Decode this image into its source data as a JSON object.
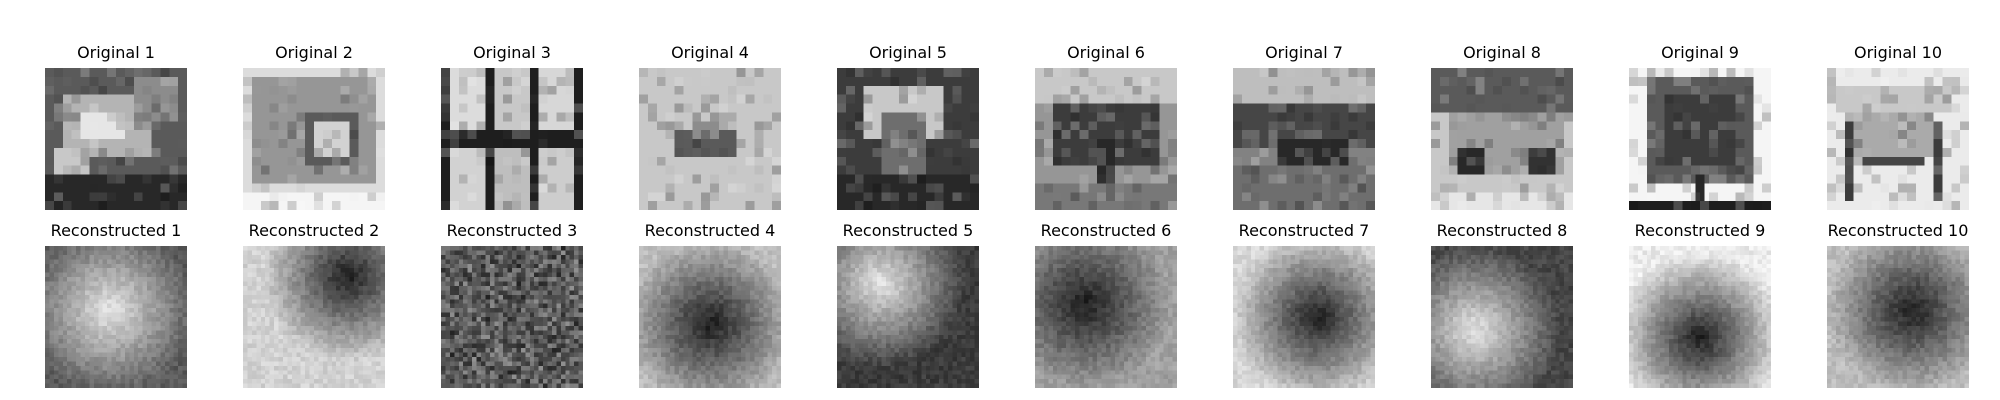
{
  "originals": {
    "titles": [
      "Original 1",
      "Original 2",
      "Original 3",
      "Original 4",
      "Original 5",
      "Original 6",
      "Original 7",
      "Original 8",
      "Original 9",
      "Original 10"
    ]
  },
  "reconstructed": {
    "titles": [
      "Reconstructed 1",
      "Reconstructed 2",
      "Reconstructed 3",
      "Reconstructed 4",
      "Reconstructed 5",
      "Reconstructed 6",
      "Reconstructed 7",
      "Reconstructed 8",
      "Reconstructed 9",
      "Reconstructed 10"
    ]
  },
  "colormap": "grayscale"
}
